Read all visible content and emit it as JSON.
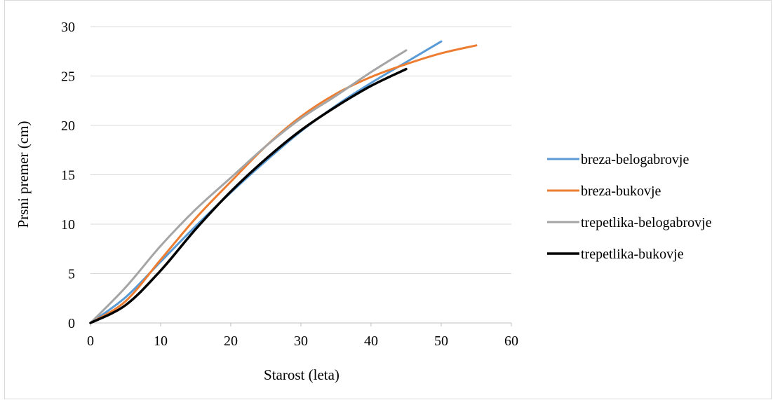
{
  "chart_data": {
    "type": "line",
    "title": "",
    "xlabel": "Starost (leta)",
    "ylabel": "Prsni premer (cm)",
    "xlim": [
      0,
      60
    ],
    "ylim": [
      0,
      30
    ],
    "xticks": [
      0,
      10,
      20,
      30,
      40,
      50,
      60
    ],
    "yticks": [
      0,
      5,
      10,
      15,
      20,
      25,
      30
    ],
    "grid": "horizontal",
    "legend_position": "right",
    "series": [
      {
        "name": "breza-belogabrovje",
        "color": "#5b9bd5",
        "x": [
          0,
          5,
          10,
          15,
          20,
          25,
          30,
          35,
          40,
          45,
          50
        ],
        "y": [
          0,
          2.6,
          6.2,
          9.8,
          13.2,
          16.4,
          19.4,
          22.0,
          24.3,
          26.4,
          28.5
        ]
      },
      {
        "name": "breza-bukovje",
        "color": "#ed7d31",
        "x": [
          0,
          5,
          10,
          15,
          20,
          25,
          30,
          35,
          40,
          45,
          50,
          55
        ],
        "y": [
          0,
          2.2,
          6.4,
          10.6,
          14.3,
          17.9,
          20.9,
          23.2,
          24.9,
          26.2,
          27.3,
          28.1
        ]
      },
      {
        "name": "trepetlika-belogabrovje",
        "color": "#a5a5a5",
        "x": [
          0,
          5,
          10,
          15,
          20,
          25,
          30,
          35,
          40,
          45
        ],
        "y": [
          0,
          3.6,
          7.8,
          11.5,
          14.7,
          17.9,
          20.7,
          23.0,
          25.4,
          27.6
        ]
      },
      {
        "name": "trepetlika-bukovje",
        "color": "#000000",
        "x": [
          0,
          5,
          10,
          15,
          20,
          25,
          30,
          35,
          40,
          45
        ],
        "y": [
          0,
          1.8,
          5.3,
          9.5,
          13.3,
          16.6,
          19.5,
          21.9,
          24.0,
          25.7
        ]
      }
    ]
  }
}
